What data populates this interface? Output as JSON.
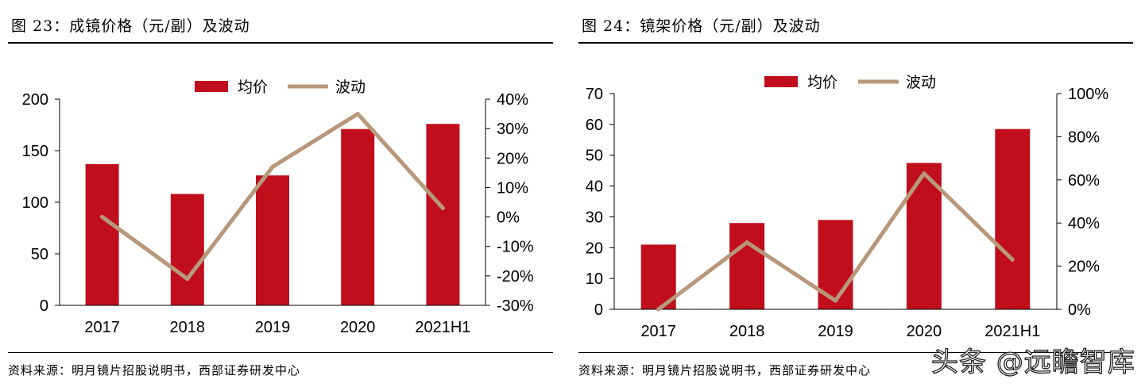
{
  "figures": [
    {
      "title": "图 23：成镜价格（元/副）及波动",
      "source": "资料来源：明月镜片招股说明书，西部证券研发中心"
    },
    {
      "title": "图 24：镜架价格（元/副）及波动",
      "source": "资料来源：明月镜片招股说明书，西部证券研发中心"
    }
  ],
  "watermark": "头条 @远瞻智库",
  "colors": {
    "bar": "#c00e1c",
    "line": "#b8977a",
    "axis": "#000000"
  },
  "chart_data": [
    {
      "type": "bar",
      "categories": [
        "2017",
        "2018",
        "2019",
        "2020",
        "2021H1"
      ],
      "series": [
        {
          "name": "均价",
          "type": "bar",
          "axis": "left",
          "values": [
            137,
            108,
            126,
            171,
            176
          ]
        },
        {
          "name": "波动",
          "type": "line",
          "axis": "right",
          "values": [
            0.0,
            -0.21,
            0.17,
            0.35,
            0.03
          ]
        }
      ],
      "y_left": {
        "min": 0,
        "max": 200,
        "ticks": [
          0,
          50,
          100,
          150,
          200
        ],
        "tick_labels": [
          "0",
          "50",
          "100",
          "150",
          "200"
        ]
      },
      "y_right": {
        "min": -0.3,
        "max": 0.4,
        "ticks": [
          -0.3,
          -0.2,
          -0.1,
          0,
          0.1,
          0.2,
          0.3,
          0.4
        ],
        "tick_labels": [
          "-30%",
          "-20%",
          "-10%",
          "0%",
          "10%",
          "20%",
          "30%",
          "40%"
        ]
      },
      "legend": "top-center",
      "grid": false
    },
    {
      "type": "bar",
      "categories": [
        "2017",
        "2018",
        "2019",
        "2020",
        "2021H1"
      ],
      "series": [
        {
          "name": "均价",
          "type": "bar",
          "axis": "left",
          "values": [
            21,
            28,
            29,
            47.5,
            58.5
          ]
        },
        {
          "name": "波动",
          "type": "line",
          "axis": "right",
          "values": [
            0.0,
            0.31,
            0.04,
            0.63,
            0.23
          ]
        }
      ],
      "y_left": {
        "min": 0,
        "max": 70,
        "ticks": [
          0,
          10,
          20,
          30,
          40,
          50,
          60,
          70
        ],
        "tick_labels": [
          "0",
          "10",
          "20",
          "30",
          "40",
          "50",
          "60",
          "70"
        ]
      },
      "y_right": {
        "min": 0,
        "max": 1.0,
        "ticks": [
          0,
          0.2,
          0.4,
          0.6,
          0.8,
          1.0
        ],
        "tick_labels": [
          "0%",
          "20%",
          "40%",
          "60%",
          "80%",
          "100%"
        ]
      },
      "legend": "top-center",
      "grid": false
    }
  ]
}
